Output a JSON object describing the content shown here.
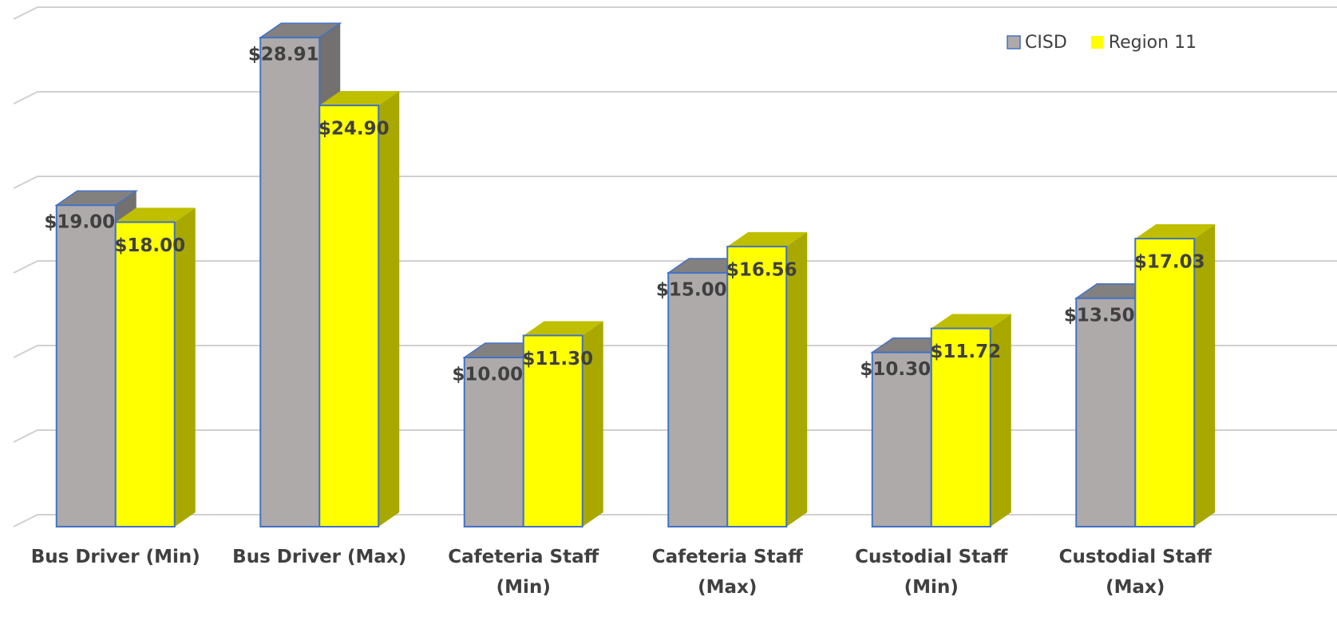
{
  "chart_data": {
    "type": "bar3d",
    "categories": [
      "Bus Driver (Min)",
      "Bus Driver (Max)",
      "Cafeteria Staff (Min)",
      "Cafeteria Staff (Max)",
      "Custodial Staff (Min)",
      "Custodial Staff (Max)"
    ],
    "series": [
      {
        "name": "CISD",
        "color": "#aeaaaa",
        "values": [
          19.0,
          28.91,
          10.0,
          15.0,
          10.3,
          13.5
        ],
        "value_labels": [
          "$19.00",
          "$28.91",
          "$10.00",
          "$15.00",
          "$10.30",
          "$13.50"
        ]
      },
      {
        "name": "Region 11",
        "color": "#ffff00",
        "values": [
          18.0,
          24.9,
          11.3,
          16.56,
          11.72,
          17.03
        ],
        "value_labels": [
          "$18.00",
          "$24.90",
          "$11.30",
          "$16.56",
          "$11.72",
          "$17.03"
        ]
      }
    ],
    "ylim": [
      0,
      30
    ],
    "yticks": [
      0,
      5,
      10,
      15,
      20,
      25,
      30
    ],
    "grid": true,
    "legend": "top-right"
  }
}
